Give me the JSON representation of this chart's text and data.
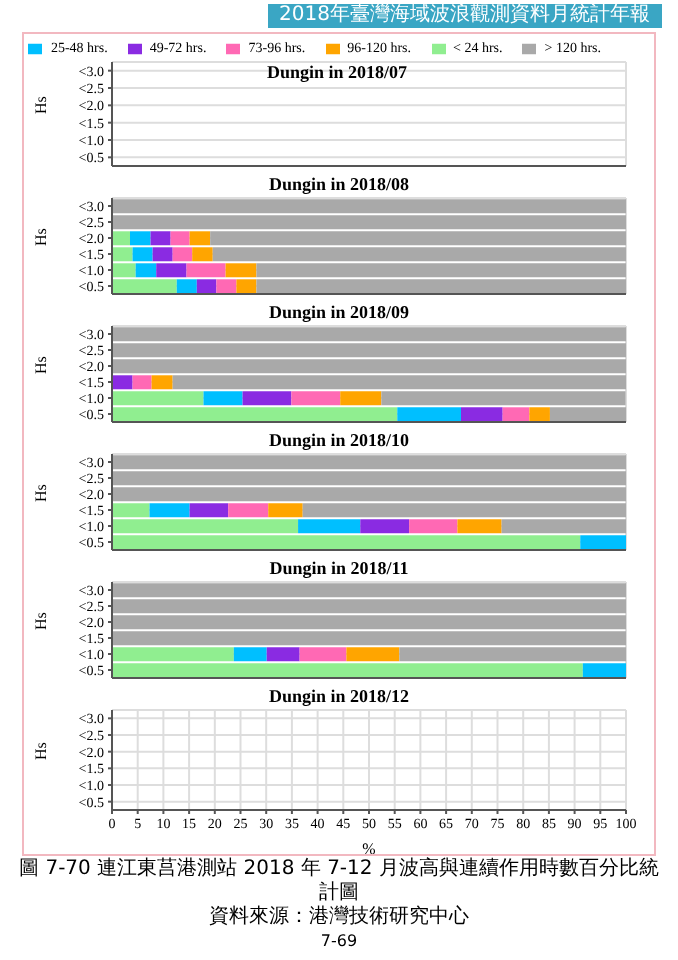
{
  "chart_data": [
    {
      "type": "bar",
      "orientation": "horizontal",
      "stacked": true,
      "title": "Dungin in 2018/07",
      "ylabel": "Hs",
      "categories": [
        "<3.0",
        "<2.5",
        "<2.0",
        "<1.5",
        "<1.0",
        "<0.5"
      ],
      "xlim": [
        0,
        100
      ],
      "xticks": [
        0,
        5,
        10,
        15,
        20,
        25,
        30,
        35,
        40,
        45,
        50,
        55,
        60,
        65,
        70,
        75,
        80,
        85,
        90,
        95,
        100
      ],
      "grid": true,
      "tick_labels": "y",
      "legend": "top",
      "annotations": [
        "2018年臺灣海域波浪觀測資料月統計年報"
      ],
      "series": [
        {
          "name": "< 24 hrs.",
          "color": "#90ee90",
          "values": [
            null,
            null,
            null,
            null,
            null,
            null
          ]
        },
        {
          "name": "25-48 hrs.",
          "color": "#00bfff",
          "values": [
            null,
            null,
            null,
            null,
            null,
            null
          ]
        },
        {
          "name": "49-72 hrs.",
          "color": "#8a2be2",
          "values": [
            null,
            null,
            null,
            null,
            null,
            null
          ]
        },
        {
          "name": "73-96 hrs.",
          "color": "#ff69b4",
          "values": [
            null,
            null,
            null,
            null,
            null,
            null
          ]
        },
        {
          "name": "96-120 hrs.",
          "color": "#ffa500",
          "values": [
            null,
            null,
            null,
            null,
            null,
            null
          ]
        },
        {
          "name": "> 120 hrs.",
          "color": "#a9a9a9",
          "values": [
            null,
            null,
            null,
            null,
            null,
            null
          ]
        }
      ]
    },
    {
      "type": "bar",
      "orientation": "horizontal",
      "stacked": true,
      "title": "Dungin in 2018/08",
      "ylabel": "Hs",
      "categories": [
        "<3.0",
        "<2.5",
        "<2.0",
        "<1.5",
        "<1.0",
        "<0.5"
      ],
      "xlim": [
        0,
        100
      ],
      "xticks": [
        0,
        5,
        10,
        15,
        20,
        25,
        30,
        35,
        40,
        45,
        50,
        55,
        60,
        65,
        70,
        75,
        80,
        85,
        90,
        95,
        100
      ],
      "grid": true,
      "tick_labels": "y",
      "series": [
        {
          "color": "#90ee90",
          "values": [
            0,
            0,
            3.5,
            4.0,
            4.6,
            12.6
          ]
        },
        {
          "color": "#00bfff",
          "values": [
            0,
            0,
            4.0,
            3.9,
            4.0,
            3.9
          ]
        },
        {
          "color": "#8a2be2",
          "values": [
            0,
            0,
            3.9,
            3.9,
            5.9,
            3.8
          ]
        },
        {
          "color": "#ff69b4",
          "values": [
            0,
            0,
            3.7,
            3.8,
            7.6,
            3.9
          ]
        },
        {
          "color": "#ffa500",
          "values": [
            0,
            0,
            4.0,
            4.0,
            6.0,
            3.9
          ]
        },
        {
          "color": "#a9a9a9",
          "values": [
            100,
            100,
            80.9,
            80.4,
            71.9,
            71.9
          ]
        }
      ]
    },
    {
      "type": "bar",
      "orientation": "horizontal",
      "stacked": true,
      "title": "Dungin in 2018/09",
      "ylabel": "Hs",
      "categories": [
        "<3.0",
        "<2.5",
        "<2.0",
        "<1.5",
        "<1.0",
        "<0.5"
      ],
      "xlim": [
        0,
        100
      ],
      "xticks": [
        0,
        5,
        10,
        15,
        20,
        25,
        30,
        35,
        40,
        45,
        50,
        55,
        60,
        65,
        70,
        75,
        80,
        85,
        90,
        95,
        100
      ],
      "grid": true,
      "tick_labels": "y",
      "series": [
        {
          "color": "#90ee90",
          "values": [
            0,
            0,
            0,
            0,
            17.8,
            55.5
          ]
        },
        {
          "color": "#00bfff",
          "values": [
            0,
            0,
            0,
            0,
            7.6,
            12.4
          ]
        },
        {
          "color": "#8a2be2",
          "values": [
            0,
            0,
            0,
            4.0,
            9.5,
            8.1
          ]
        },
        {
          "color": "#ff69b4",
          "values": [
            0,
            0,
            0,
            3.7,
            9.5,
            5.2
          ]
        },
        {
          "color": "#ffa500",
          "values": [
            0,
            0,
            0,
            4.1,
            8.0,
            4.0
          ]
        },
        {
          "color": "#a9a9a9",
          "values": [
            100,
            100,
            100,
            88.2,
            47.5,
            14.8
          ]
        }
      ]
    },
    {
      "type": "bar",
      "orientation": "horizontal",
      "stacked": true,
      "title": "Dungin in 2018/10",
      "ylabel": "Hs",
      "categories": [
        "<3.0",
        "<2.5",
        "<2.0",
        "<1.5",
        "<1.0",
        "<0.5"
      ],
      "xlim": [
        0,
        100
      ],
      "xticks": [
        0,
        5,
        10,
        15,
        20,
        25,
        30,
        35,
        40,
        45,
        50,
        55,
        60,
        65,
        70,
        75,
        80,
        85,
        90,
        95,
        100
      ],
      "grid": true,
      "tick_labels": "y",
      "series": [
        {
          "color": "#90ee90",
          "values": [
            0,
            0,
            0,
            7.3,
            36.2,
            91.1
          ]
        },
        {
          "color": "#00bfff",
          "values": [
            0,
            0,
            0,
            7.8,
            12.1,
            8.9
          ]
        },
        {
          "color": "#8a2be2",
          "values": [
            0,
            0,
            0,
            7.5,
            9.5,
            0
          ]
        },
        {
          "color": "#ff69b4",
          "values": [
            0,
            0,
            0,
            7.8,
            9.4,
            0
          ]
        },
        {
          "color": "#ffa500",
          "values": [
            0,
            0,
            0,
            6.7,
            8.6,
            0
          ]
        },
        {
          "color": "#a9a9a9",
          "values": [
            100,
            100,
            100,
            62.9,
            24.2,
            0
          ]
        }
      ]
    },
    {
      "type": "bar",
      "orientation": "horizontal",
      "stacked": true,
      "title": "Dungin in 2018/11",
      "ylabel": "Hs",
      "categories": [
        "<3.0",
        "<2.5",
        "<2.0",
        "<1.5",
        "<1.0",
        "<0.5"
      ],
      "xlim": [
        0,
        100
      ],
      "xticks": [
        0,
        5,
        10,
        15,
        20,
        25,
        30,
        35,
        40,
        45,
        50,
        55,
        60,
        65,
        70,
        75,
        80,
        85,
        90,
        95,
        100
      ],
      "grid": true,
      "tick_labels": "y",
      "series": [
        {
          "color": "#90ee90",
          "values": [
            0,
            0,
            0,
            0,
            23.7,
            91.6
          ]
        },
        {
          "color": "#00bfff",
          "values": [
            0,
            0,
            0,
            0,
            6.4,
            8.4
          ]
        },
        {
          "color": "#8a2be2",
          "values": [
            0,
            0,
            0,
            0,
            6.4,
            0
          ]
        },
        {
          "color": "#ff69b4",
          "values": [
            0,
            0,
            0,
            0,
            9.1,
            0
          ]
        },
        {
          "color": "#ffa500",
          "values": [
            0,
            0,
            0,
            0,
            10.3,
            0
          ]
        },
        {
          "color": "#a9a9a9",
          "values": [
            100,
            100,
            100,
            100,
            44.2,
            0
          ]
        }
      ]
    },
    {
      "type": "bar",
      "orientation": "horizontal",
      "stacked": true,
      "title": "Dungin in 2018/12",
      "ylabel": "Hs",
      "xlabel": "%",
      "categories": [
        "<3.0",
        "<2.5",
        "<2.0",
        "<1.5",
        "<1.0",
        "<0.5"
      ],
      "xlim": [
        0,
        100
      ],
      "xticks": [
        0,
        5,
        10,
        15,
        20,
        25,
        30,
        35,
        40,
        45,
        50,
        55,
        60,
        65,
        70,
        75,
        80,
        85,
        90,
        95,
        100
      ],
      "grid": true,
      "annotations": [
        "圖 7-70 連江東莒港測站 2018 年 7-12 月波高與連續作用時數百分比統計圖",
        "資料來源：港灣技術研究中心",
        "7-69"
      ],
      "series": [
        {
          "color": "#90ee90",
          "values": [
            null,
            null,
            null,
            null,
            null,
            null
          ]
        },
        {
          "color": "#00bfff",
          "values": [
            null,
            null,
            null,
            null,
            null,
            null
          ]
        },
        {
          "color": "#8a2be2",
          "values": [
            null,
            null,
            null,
            null,
            null,
            null
          ]
        },
        {
          "color": "#ff69b4",
          "values": [
            null,
            null,
            null,
            null,
            null,
            null
          ]
        },
        {
          "color": "#ffa500",
          "values": [
            null,
            null,
            null,
            null,
            null,
            null
          ]
        },
        {
          "color": "#a9a9a9",
          "values": [
            null,
            null,
            null,
            null,
            null,
            null
          ]
        }
      ]
    }
  ]
}
